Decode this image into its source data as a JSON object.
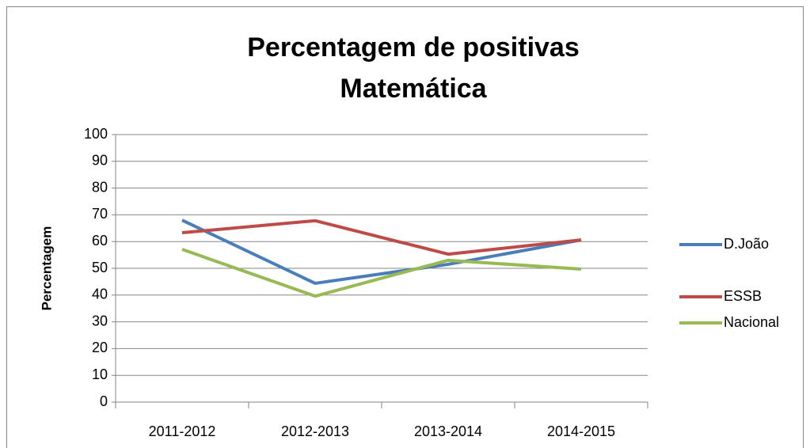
{
  "chart_data": {
    "type": "line",
    "title": [
      "Percentagem de positivas",
      "Matemática"
    ],
    "y_label": "Percentagem",
    "categories": [
      "2011-2012",
      "2012-2013",
      "2013-2014",
      "2014-2015"
    ],
    "series": [
      {
        "name": "D.João",
        "color": "#4a7ebb",
        "values": [
          68.0,
          44.4,
          51.5,
          60.6
        ]
      },
      {
        "name": "ESSB",
        "color": "#be4b48",
        "values": [
          63.3,
          67.8,
          55.3,
          60.6
        ]
      },
      {
        "name": "Nacional",
        "color": "#98b954",
        "values": [
          57.1,
          39.6,
          53.0,
          49.7
        ]
      }
    ],
    "ylim": [
      0,
      100
    ],
    "yticks": [
      0,
      10,
      20,
      30,
      40,
      50,
      60,
      70,
      80,
      90,
      100
    ],
    "grid": true,
    "legend": "right"
  }
}
